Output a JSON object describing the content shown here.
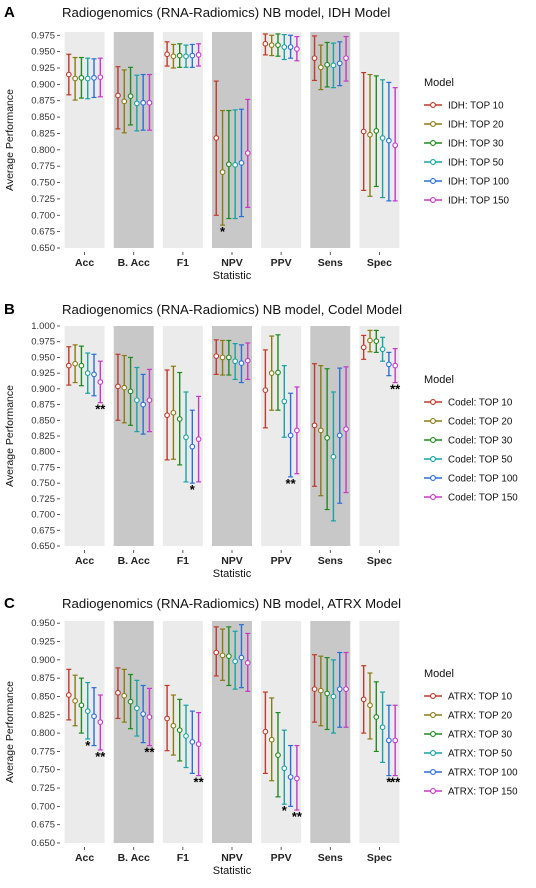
{
  "colors": {
    "panel_bg": "#ffffff",
    "band_light": "#ebebeb",
    "band_dark": "#c8c8c8",
    "series": [
      "#c0392b",
      "#8a7a12",
      "#1f8a1f",
      "#17a3a3",
      "#2a6fd6",
      "#c43ac4"
    ]
  },
  "chart_data": [
    {
      "type": "errorbar",
      "panel_letter": "A",
      "title": "Radiogenomics (RNA-Radiomics) NB model, IDH Model",
      "xlabel": "Statistic",
      "ylabel": "Average Performance",
      "ylim": [
        0.65,
        0.98
      ],
      "yticks": [
        "0.650",
        "0.675",
        "0.700",
        "0.725",
        "0.750",
        "0.775",
        "0.800",
        "0.825",
        "0.850",
        "0.875",
        "0.900",
        "0.925",
        "0.950",
        "0.975"
      ],
      "categories": [
        "Acc",
        "B. Acc",
        "F1",
        "NPV",
        "PPV",
        "Sens",
        "Spec"
      ],
      "shaded": [
        false,
        true,
        false,
        true,
        false,
        true,
        false
      ],
      "legend_title": "Model",
      "legend_position": "right",
      "series": [
        {
          "name": "IDH: TOP 10",
          "mean": [
            0.915,
            0.883,
            0.946,
            0.818,
            0.962,
            0.94,
            0.828
          ],
          "lower": [
            0.884,
            0.832,
            0.928,
            0.7,
            0.945,
            0.906,
            0.738
          ],
          "upper": [
            0.946,
            0.927,
            0.965,
            0.905,
            0.977,
            0.974,
            0.918
          ]
        },
        {
          "name": "IDH: TOP 20",
          "mean": [
            0.909,
            0.874,
            0.943,
            0.766,
            0.96,
            0.926,
            0.823
          ],
          "lower": [
            0.876,
            0.826,
            0.925,
            0.685,
            0.944,
            0.892,
            0.729
          ],
          "upper": [
            0.941,
            0.922,
            0.961,
            0.86,
            0.975,
            0.96,
            0.915
          ]
        },
        {
          "name": "IDH: TOP 30",
          "mean": [
            0.91,
            0.882,
            0.944,
            0.778,
            0.96,
            0.93,
            0.829
          ],
          "lower": [
            0.879,
            0.838,
            0.926,
            0.695,
            0.943,
            0.896,
            0.744
          ],
          "upper": [
            0.941,
            0.926,
            0.962,
            0.86,
            0.977,
            0.964,
            0.913
          ]
        },
        {
          "name": "IDH: TOP 50",
          "mean": [
            0.909,
            0.871,
            0.943,
            0.777,
            0.957,
            0.929,
            0.818
          ],
          "lower": [
            0.878,
            0.829,
            0.926,
            0.695,
            0.938,
            0.895,
            0.727
          ],
          "upper": [
            0.94,
            0.914,
            0.96,
            0.861,
            0.976,
            0.963,
            0.907
          ]
        },
        {
          "name": "IDH: TOP 100",
          "mean": [
            0.91,
            0.872,
            0.944,
            0.78,
            0.957,
            0.932,
            0.814
          ],
          "lower": [
            0.88,
            0.83,
            0.926,
            0.698,
            0.94,
            0.898,
            0.722
          ],
          "upper": [
            0.939,
            0.915,
            0.961,
            0.862,
            0.975,
            0.965,
            0.903
          ]
        },
        {
          "name": "IDH: TOP 150",
          "mean": [
            0.911,
            0.872,
            0.945,
            0.795,
            0.954,
            0.94,
            0.807
          ],
          "lower": [
            0.881,
            0.83,
            0.928,
            0.712,
            0.936,
            0.905,
            0.722
          ],
          "upper": [
            0.94,
            0.915,
            0.962,
            0.877,
            0.973,
            0.973,
            0.895
          ]
        }
      ],
      "annotations": [
        {
          "category": "NPV",
          "series_index": 1,
          "text": "*"
        }
      ]
    },
    {
      "type": "errorbar",
      "panel_letter": "B",
      "title": "Radiogenomics (RNA-Radiomics) NB model, Codel Model",
      "xlabel": "Statistic",
      "ylabel": "Average Performance",
      "ylim": [
        0.65,
        1.0
      ],
      "yticks": [
        "0.650",
        "0.675",
        "0.700",
        "0.725",
        "0.750",
        "0.775",
        "0.800",
        "0.825",
        "0.850",
        "0.875",
        "0.900",
        "0.925",
        "0.950",
        "0.975",
        "1.000"
      ],
      "categories": [
        "Acc",
        "B. Acc",
        "F1",
        "NPV",
        "PPV",
        "Sens",
        "Spec"
      ],
      "shaded": [
        false,
        true,
        false,
        true,
        false,
        true,
        false
      ],
      "legend_title": "Model",
      "legend_position": "right",
      "series": [
        {
          "name": "Codel: TOP 10",
          "mean": [
            0.937,
            0.904,
            0.858,
            0.952,
            0.898,
            0.842,
            0.966
          ],
          "lower": [
            0.906,
            0.85,
            0.787,
            0.923,
            0.838,
            0.745,
            0.947
          ],
          "upper": [
            0.967,
            0.955,
            0.93,
            0.978,
            0.962,
            0.94,
            0.985
          ]
        },
        {
          "name": "Codel: TOP 20",
          "mean": [
            0.94,
            0.902,
            0.862,
            0.95,
            0.925,
            0.834,
            0.977
          ],
          "lower": [
            0.91,
            0.846,
            0.788,
            0.922,
            0.866,
            0.73,
            0.959
          ],
          "upper": [
            0.97,
            0.953,
            0.936,
            0.977,
            0.984,
            0.937,
            0.993
          ]
        },
        {
          "name": "Codel: TOP 30",
          "mean": [
            0.937,
            0.896,
            0.852,
            0.95,
            0.926,
            0.822,
            0.976
          ],
          "lower": [
            0.905,
            0.842,
            0.779,
            0.922,
            0.866,
            0.708,
            0.958
          ],
          "upper": [
            0.968,
            0.95,
            0.926,
            0.977,
            0.986,
            0.932,
            0.993
          ]
        },
        {
          "name": "Codel: TOP 50",
          "mean": [
            0.925,
            0.882,
            0.823,
            0.944,
            0.88,
            0.792,
            0.963
          ],
          "lower": [
            0.893,
            0.832,
            0.752,
            0.915,
            0.823,
            0.69,
            0.944
          ],
          "upper": [
            0.957,
            0.934,
            0.895,
            0.972,
            0.937,
            0.895,
            0.982
          ]
        },
        {
          "name": "Codel: TOP 100",
          "mean": [
            0.923,
            0.875,
            0.808,
            0.941,
            0.826,
            0.826,
            0.939
          ],
          "lower": [
            0.889,
            0.828,
            0.75,
            0.91,
            0.76,
            0.718,
            0.921
          ],
          "upper": [
            0.955,
            0.923,
            0.866,
            0.97,
            0.893,
            0.933,
            0.958
          ]
        },
        {
          "name": "Codel: TOP 150",
          "mean": [
            0.911,
            0.882,
            0.82,
            0.945,
            0.834,
            0.836,
            0.937
          ],
          "lower": [
            0.878,
            0.832,
            0.752,
            0.915,
            0.765,
            0.735,
            0.91
          ],
          "upper": [
            0.944,
            0.931,
            0.888,
            0.973,
            0.903,
            0.935,
            0.964
          ]
        }
      ],
      "annotations": [
        {
          "category": "Acc",
          "series_index": 5,
          "text": "**"
        },
        {
          "category": "F1",
          "series_index": 4,
          "text": "*"
        },
        {
          "category": "PPV",
          "series_index": 4,
          "text": "**"
        },
        {
          "category": "Spec",
          "series_index": 5,
          "text": "**"
        }
      ]
    },
    {
      "type": "errorbar",
      "panel_letter": "C",
      "title": "Radiogenomics (RNA-Radiomics) NB model, ATRX Model",
      "xlabel": "Statistic",
      "ylabel": "Average Performance",
      "ylim": [
        0.65,
        0.953
      ],
      "yticks": [
        "0.650",
        "0.675",
        "0.700",
        "0.725",
        "0.750",
        "0.775",
        "0.800",
        "0.825",
        "0.850",
        "0.875",
        "0.900",
        "0.925",
        "0.950"
      ],
      "categories": [
        "Acc",
        "B. Acc",
        "F1",
        "NPV",
        "PPV",
        "Sens",
        "Spec"
      ],
      "shaded": [
        false,
        true,
        false,
        true,
        false,
        true,
        false
      ],
      "legend_title": "Model",
      "legend_position": "right",
      "series": [
        {
          "name": "ATRX: TOP 10",
          "mean": [
            0.852,
            0.855,
            0.82,
            0.91,
            0.802,
            0.86,
            0.846
          ],
          "lower": [
            0.818,
            0.82,
            0.776,
            0.878,
            0.745,
            0.815,
            0.8
          ],
          "upper": [
            0.887,
            0.889,
            0.865,
            0.945,
            0.856,
            0.907,
            0.892
          ]
        },
        {
          "name": "ATRX: TOP 20",
          "mean": [
            0.844,
            0.851,
            0.81,
            0.906,
            0.791,
            0.858,
            0.838
          ],
          "lower": [
            0.81,
            0.815,
            0.77,
            0.872,
            0.735,
            0.81,
            0.792
          ],
          "upper": [
            0.879,
            0.887,
            0.852,
            0.942,
            0.848,
            0.905,
            0.882
          ]
        },
        {
          "name": "ATRX: TOP 30",
          "mean": [
            0.838,
            0.843,
            0.804,
            0.905,
            0.77,
            0.854,
            0.822
          ],
          "lower": [
            0.8,
            0.806,
            0.762,
            0.865,
            0.713,
            0.805,
            0.775
          ],
          "upper": [
            0.875,
            0.88,
            0.846,
            0.945,
            0.828,
            0.903,
            0.87
          ]
        },
        {
          "name": "ATRX: TOP 50",
          "mean": [
            0.83,
            0.834,
            0.796,
            0.898,
            0.752,
            0.85,
            0.808
          ],
          "lower": [
            0.792,
            0.796,
            0.753,
            0.86,
            0.703,
            0.8,
            0.76
          ],
          "upper": [
            0.869,
            0.872,
            0.838,
            0.939,
            0.804,
            0.9,
            0.856
          ]
        },
        {
          "name": "ATRX: TOP 100",
          "mean": [
            0.823,
            0.826,
            0.788,
            0.903,
            0.74,
            0.86,
            0.79
          ],
          "lower": [
            0.783,
            0.787,
            0.745,
            0.862,
            0.7,
            0.808,
            0.742
          ],
          "upper": [
            0.862,
            0.865,
            0.83,
            0.948,
            0.783,
            0.91,
            0.838
          ]
        },
        {
          "name": "ATRX: TOP 150",
          "mean": [
            0.815,
            0.822,
            0.785,
            0.896,
            0.738,
            0.86,
            0.79
          ],
          "lower": [
            0.777,
            0.783,
            0.742,
            0.857,
            0.695,
            0.808,
            0.742
          ],
          "upper": [
            0.852,
            0.861,
            0.828,
            0.936,
            0.783,
            0.91,
            0.838
          ]
        }
      ],
      "annotations": [
        {
          "category": "Acc",
          "series_index": 3,
          "text": "*"
        },
        {
          "category": "Acc",
          "series_index": 5,
          "text": "**"
        },
        {
          "category": "B. Acc",
          "series_index": 5,
          "text": "**"
        },
        {
          "category": "F1",
          "series_index": 5,
          "text": "**"
        },
        {
          "category": "PPV",
          "series_index": 3,
          "text": "*"
        },
        {
          "category": "PPV",
          "series_index": 5,
          "text": "**"
        },
        {
          "category": "Spec",
          "series_index": 4,
          "text": "*"
        },
        {
          "category": "Spec",
          "series_index": 5,
          "text": "**"
        }
      ]
    }
  ]
}
